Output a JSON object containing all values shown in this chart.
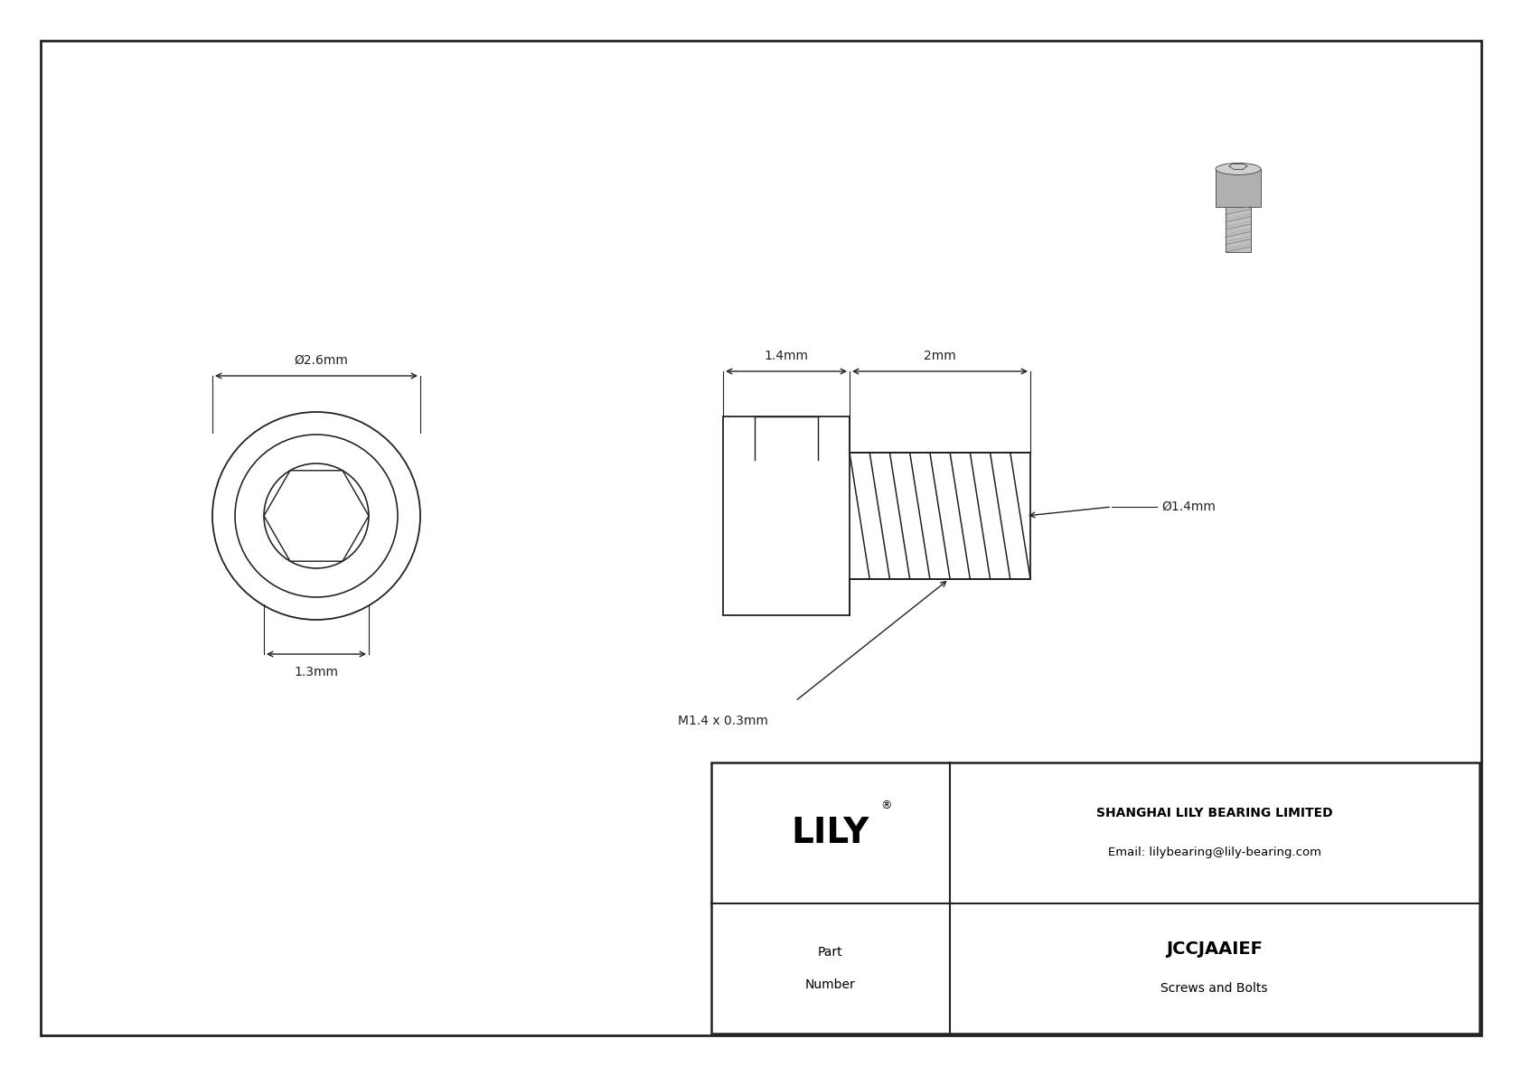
{
  "bg_color": "#e8e8e8",
  "drawing_bg": "#ffffff",
  "border_color": "#222222",
  "line_color": "#222222",
  "dim_diameter_head": "Ø2.6mm",
  "dim_head_width": "1.3mm",
  "dim_thread_length": "2mm",
  "dim_head_length": "1.4mm",
  "dim_thread_dia": "Ø1.4mm",
  "dim_thread_label": "M1.4 x 0.3mm",
  "title_company": "SHANGHAI LILY BEARING LIMITED",
  "title_email": "Email: lilybearing@lily-bearing.com",
  "part_number": "JCCJAAIEF",
  "part_category": "Screws and Bolts",
  "logo_text": "LILY"
}
